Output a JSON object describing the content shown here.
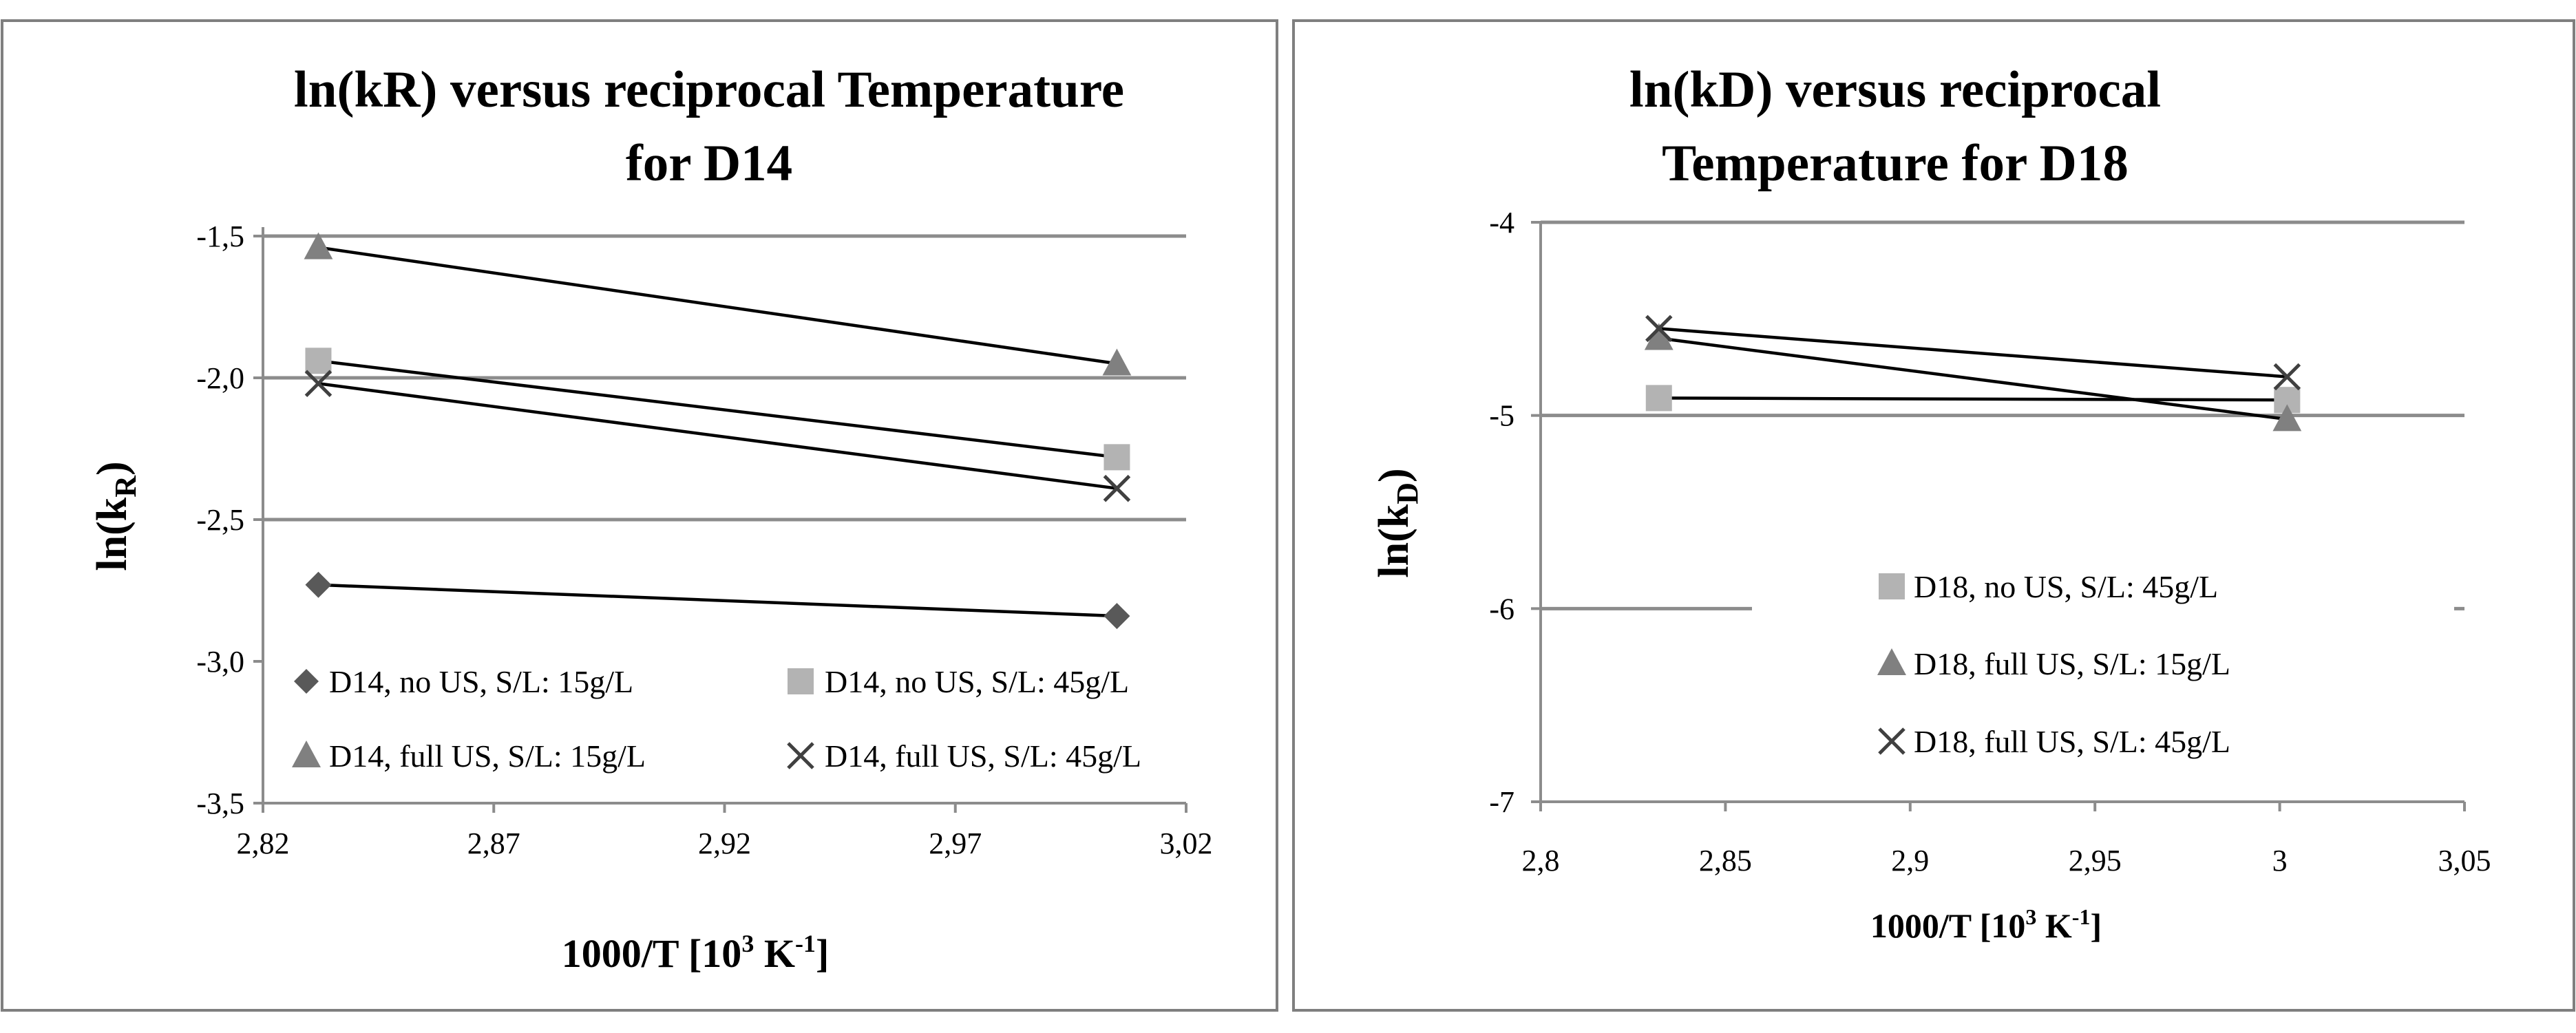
{
  "chart_data": [
    {
      "type": "line",
      "title_lines": [
        "ln(kR) versus reciprocal Temperature",
        "for D14"
      ],
      "ylabel": {
        "main": "ln(k",
        "sub": "R",
        "close": ")"
      },
      "xlabel": {
        "main": "1000/T [10",
        "sup1": "3",
        "mid": " K",
        "sup2": "-1",
        "close": "]"
      },
      "xlim": [
        2.82,
        3.02
      ],
      "ylim": [
        -3.5,
        -1.45
      ],
      "xticks": [
        2.82,
        2.87,
        2.92,
        2.97,
        3.02
      ],
      "xtick_labels": [
        "2,82",
        "2,87",
        "2,92",
        "2,97",
        "3,02"
      ],
      "yticks": [
        -1.5,
        -2.0,
        -2.5,
        -3.0,
        -3.5
      ],
      "ytick_labels": [
        "-1,5",
        "-2,0",
        "-2,5",
        "-3,0",
        "-3,5"
      ],
      "gridlines": [
        -1.5,
        -2.0,
        -2.5
      ],
      "series": [
        {
          "name": "D14, no US, S/L: 15g/L",
          "marker": "diamond",
          "color": "#595959",
          "x": [
            2.832,
            3.005
          ],
          "y": [
            -2.73,
            -2.84
          ]
        },
        {
          "name": "D14, no US, S/L: 45g/L",
          "marker": "square",
          "color": "#b3b3b3",
          "x": [
            2.832,
            3.005
          ],
          "y": [
            -1.94,
            -2.28
          ]
        },
        {
          "name": "D14, full US, S/L: 15g/L",
          "marker": "triangle",
          "color": "#808080",
          "x": [
            2.832,
            3.005
          ],
          "y": [
            -1.54,
            -1.95
          ]
        },
        {
          "name": "D14, full US, S/L: 45g/L",
          "marker": "x",
          "color": "#404040",
          "x": [
            2.832,
            3.005
          ],
          "y": [
            -2.02,
            -2.39
          ]
        }
      ],
      "legend_position": "bottom, two columns"
    },
    {
      "type": "line",
      "title_lines": [
        "ln(kD) versus reciprocal",
        "Temperature for D18"
      ],
      "ylabel": {
        "main": "ln(k",
        "sub": "D",
        "close": ")"
      },
      "xlabel": {
        "main": "1000/T [10",
        "sup1": "3",
        "mid": " K",
        "sup2": "-1",
        "close": "]"
      },
      "xlim": [
        2.8,
        3.05
      ],
      "ylim": [
        -7,
        -4
      ],
      "xticks": [
        2.8,
        2.85,
        2.9,
        2.95,
        3.0,
        3.05
      ],
      "xtick_labels": [
        "2,8",
        "2,85",
        "2,9",
        "2,95",
        "3",
        "3,05"
      ],
      "yticks": [
        -4,
        -5,
        -6,
        -7
      ],
      "ytick_labels": [
        "-4",
        "-5",
        "-6",
        "-7"
      ],
      "gridlines": [
        -4,
        -5,
        -6
      ],
      "series": [
        {
          "name": "D18, no US, S/L: 45g/L",
          "marker": "square",
          "color": "#b3b3b3",
          "x": [
            2.832,
            3.002
          ],
          "y": [
            -4.91,
            -4.92
          ]
        },
        {
          "name": "D18, full US, S/L: 15g/L",
          "marker": "triangle",
          "color": "#808080",
          "x": [
            2.832,
            3.002
          ],
          "y": [
            -4.6,
            -5.02
          ]
        },
        {
          "name": "D18, full US, S/L: 45g/L",
          "marker": "x",
          "color": "#404040",
          "x": [
            2.832,
            3.002
          ],
          "y": [
            -4.55,
            -4.8
          ]
        }
      ],
      "legend_position": "center-right"
    }
  ]
}
